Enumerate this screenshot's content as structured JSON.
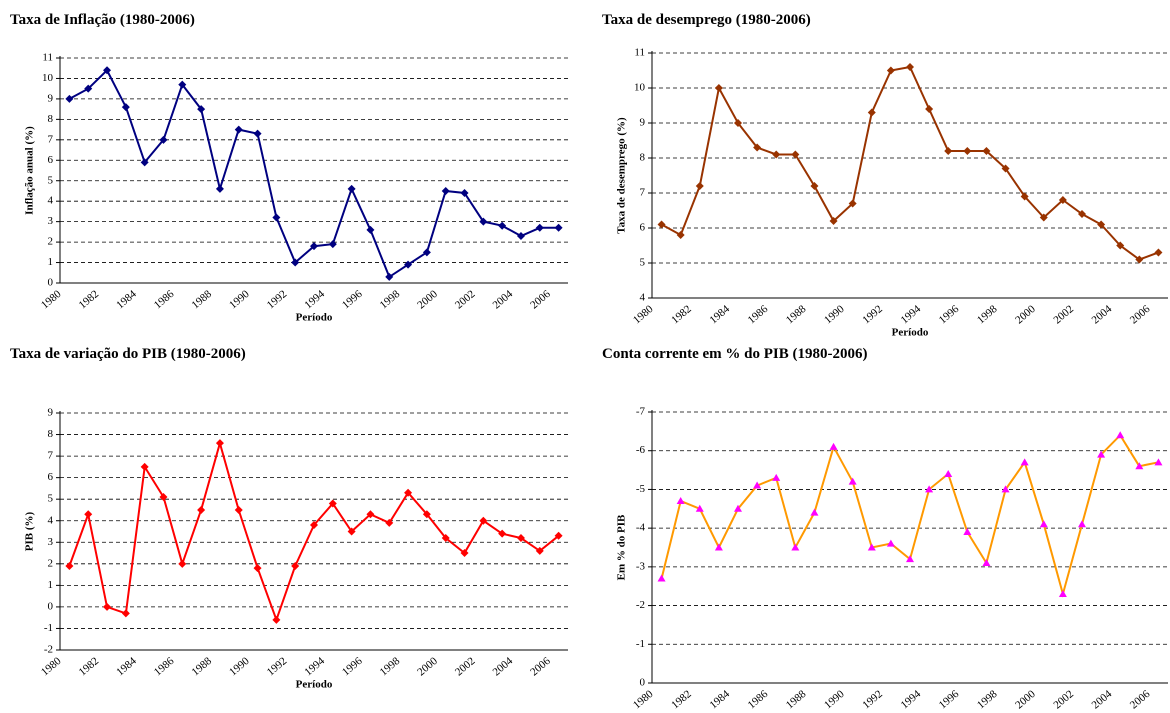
{
  "chart_data": [
    {
      "type": "line",
      "title": "Taxa de Inflação (1980-2006)",
      "xlabel": "Período",
      "ylabel": "Inflação anual (%)",
      "categories": [
        "1980",
        null,
        "1982",
        null,
        "1984",
        null,
        "1986",
        null,
        "1988",
        null,
        "1990",
        null,
        "1992",
        null,
        "1994",
        null,
        "1996",
        null,
        "1998",
        null,
        "2000",
        null,
        "2002",
        null,
        "2004",
        null,
        "2006"
      ],
      "values": [
        9.0,
        9.5,
        10.4,
        8.6,
        5.9,
        7.0,
        9.7,
        8.5,
        4.6,
        7.5,
        7.3,
        3.2,
        1.0,
        1.8,
        1.9,
        4.6,
        2.6,
        0.3,
        0.9,
        1.5,
        4.5,
        4.4,
        3.0,
        2.8,
        2.3,
        2.7,
        2.7
      ],
      "color": "#000080",
      "marker": "diamond",
      "marker_color": "#000080",
      "ylim": [
        0,
        11
      ],
      "yticks": [
        0,
        1,
        2,
        3,
        4,
        5,
        6,
        7,
        8,
        9,
        10,
        11
      ],
      "grid": true
    },
    {
      "type": "line",
      "title": "Taxa de desemprego (1980-2006)",
      "xlabel": "Período",
      "ylabel": "Taxa de desemprego (%)",
      "categories": [
        "1980",
        null,
        "1982",
        null,
        "1984",
        null,
        "1986",
        null,
        "1988",
        null,
        "1990",
        null,
        "1992",
        null,
        "1994",
        null,
        "1996",
        null,
        "1998",
        null,
        "2000",
        null,
        "2002",
        null,
        "2004",
        null,
        "2006"
      ],
      "values": [
        6.1,
        5.8,
        7.2,
        10.0,
        9.0,
        8.3,
        8.1,
        8.1,
        7.2,
        6.2,
        6.7,
        9.3,
        10.5,
        10.6,
        9.4,
        8.2,
        8.2,
        8.2,
        7.7,
        6.9,
        6.3,
        6.8,
        6.4,
        6.1,
        5.5,
        5.1,
        5.3
      ],
      "color": "#993300",
      "marker": "diamond",
      "marker_color": "#993300",
      "ylim": [
        4,
        11
      ],
      "yticks": [
        4,
        5,
        6,
        7,
        8,
        9,
        10,
        11
      ],
      "grid": true
    },
    {
      "type": "line",
      "title": "Taxa de variação do PIB (1980-2006)",
      "xlabel": "Período",
      "ylabel": "PIB (%)",
      "categories": [
        "1980",
        null,
        "1982",
        null,
        "1984",
        null,
        "1986",
        null,
        "1988",
        null,
        "1990",
        null,
        "1992",
        null,
        "1994",
        null,
        "1996",
        null,
        "1998",
        null,
        "2000",
        null,
        "2002",
        null,
        "2004",
        null,
        "2006"
      ],
      "values": [
        1.9,
        4.3,
        0.0,
        -0.3,
        6.5,
        5.1,
        2.0,
        4.5,
        7.6,
        4.5,
        1.8,
        -0.6,
        1.9,
        3.8,
        4.8,
        3.5,
        4.3,
        3.9,
        5.3,
        4.3,
        3.2,
        2.5,
        4.0,
        3.4,
        3.2,
        2.6,
        3.3
      ],
      "color": "#ff0000",
      "marker": "diamond",
      "marker_color": "#ff0000",
      "ylim": [
        -2,
        9
      ],
      "yticks": [
        -2,
        -1,
        0,
        1,
        2,
        3,
        4,
        5,
        6,
        7,
        8,
        9
      ],
      "grid": true
    },
    {
      "type": "line",
      "title": "Conta corrente em % do PIB (1980-2006)",
      "xlabel": "Período",
      "ylabel": "Em % do PIB",
      "categories": [
        "1980",
        null,
        "1982",
        null,
        "1984",
        null,
        "1986",
        null,
        "1988",
        null,
        "1990",
        null,
        "1992",
        null,
        "1994",
        null,
        "1996",
        null,
        "1998",
        null,
        "2000",
        null,
        "2002",
        null,
        "2004",
        null,
        "2006"
      ],
      "values": [
        -2.7,
        -4.7,
        -4.5,
        -3.5,
        -4.5,
        -5.1,
        -5.3,
        -3.5,
        -4.4,
        -6.1,
        -5.2,
        -3.5,
        -3.6,
        -3.2,
        -5.0,
        -5.4,
        -3.9,
        -3.1,
        -5.0,
        -5.7,
        -4.1,
        -2.3,
        -4.1,
        -5.9,
        -6.4,
        -5.6,
        -5.7
      ],
      "color": "#ff9900",
      "marker": "triangle",
      "marker_color": "#ff00ff",
      "ylim": [
        0,
        -7
      ],
      "yticks": [
        0,
        -1,
        -2,
        -3,
        -4,
        -5,
        -6,
        -7
      ],
      "grid": true
    }
  ]
}
